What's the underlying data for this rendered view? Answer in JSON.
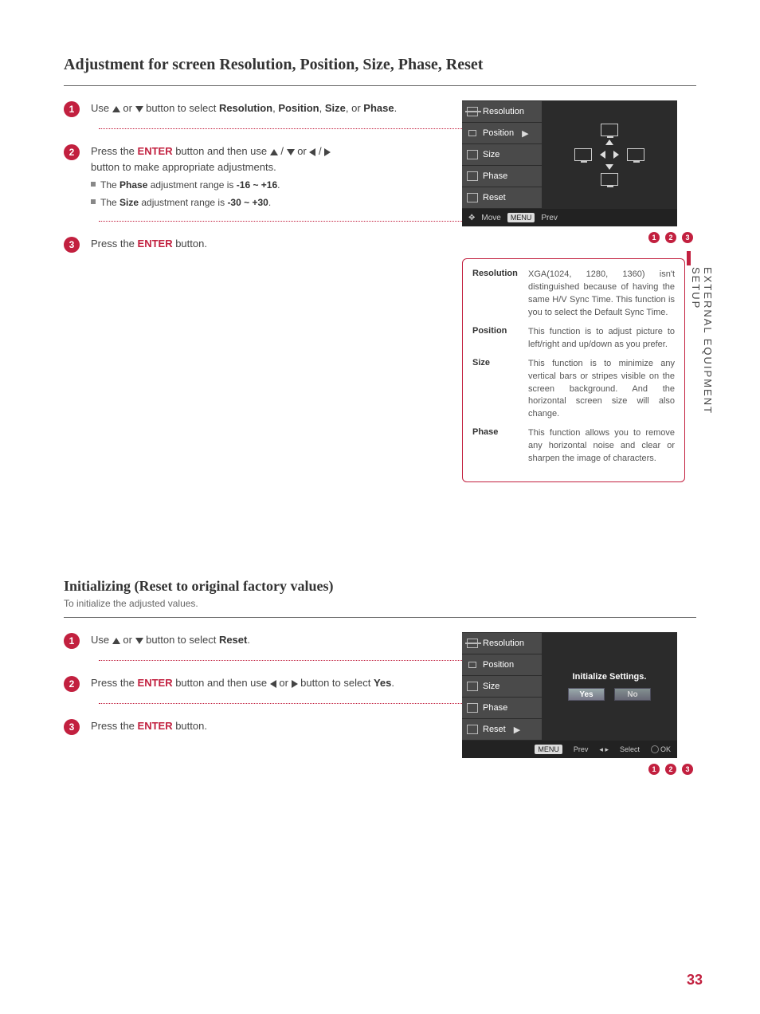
{
  "side_label": "EXTERNAL EQUIPMENT SETUP",
  "page_number": "33",
  "adjust": {
    "heading": "Adjustment for screen Resolution, Position, Size, Phase, Reset",
    "step1_a": "Use ",
    "step1_b": " or ",
    "step1_c": " button to select ",
    "step1_items": [
      "Resolution",
      "Position",
      "Size",
      "Phase"
    ],
    "step1_end": ".",
    "step2_a": "Press the ",
    "step2_enter": "ENTER",
    "step2_b": " button and then use ",
    "step2_c": " button to make appropriate adjustments.",
    "step2_sub1_a": "The ",
    "step2_sub1_b": "Phase",
    "step2_sub1_c": " adjustment range is ",
    "step2_sub1_d": "-16 ~ +16",
    "step2_sub2_a": "The ",
    "step2_sub2_b": "Size",
    "step2_sub2_c": " adjustment range is ",
    "step2_sub2_d": "-30 ~ +30",
    "step3_a": "Press the ",
    "step3_enter": "ENTER",
    "step3_b": " button."
  },
  "osd1": {
    "items": [
      "Resolution",
      "Position",
      "Size",
      "Phase",
      "Reset"
    ],
    "position_marker": "▶",
    "footer_move": "Move",
    "footer_menu": "MENU",
    "footer_prev": "Prev"
  },
  "info": {
    "items": [
      {
        "term": "Resolution",
        "desc": "XGA(1024, 1280, 1360) isn't distinguished because of having the same H/V Sync Time. This function is you to select the Default Sync Time."
      },
      {
        "term": "Position",
        "desc": "This function is to adjust picture to left/right and up/down as you prefer."
      },
      {
        "term": "Size",
        "desc": "This function is to minimize any vertical bars or stripes visible on the screen background. And the horizontal screen size will also change."
      },
      {
        "term": "Phase",
        "desc": "This function allows you to remove any horizontal noise and clear or sharpen the image of characters."
      }
    ]
  },
  "init": {
    "heading": "Initializing (Reset to original factory values)",
    "subdesc": "To initialize the adjusted values.",
    "step1_a": "Use ",
    "step1_b": " or ",
    "step1_c": " button to select ",
    "step1_item": "Reset",
    "step2_a": "Press the ",
    "step2_enter": "ENTER",
    "step2_b": " button and then use ",
    "step2_c": " or ",
    "step2_d": " button to select ",
    "step2_item": "Yes",
    "step3_a": "Press the ",
    "step3_enter": "ENTER",
    "step3_b": " button."
  },
  "osd2": {
    "items": [
      "Resolution",
      "Position",
      "Size",
      "Phase",
      "Reset"
    ],
    "init_text": "Initialize Settings.",
    "yes": "Yes",
    "no": "No",
    "footer_menu": "MENU",
    "footer_prev": "Prev",
    "footer_select": "Select",
    "footer_ok": "OK"
  }
}
